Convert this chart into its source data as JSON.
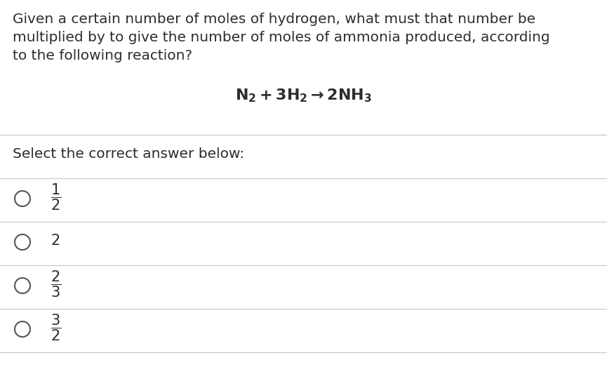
{
  "background_color": "#ffffff",
  "text_color": "#3a3a3a",
  "question_color": "#2d2d2d",
  "reaction_color": "#2d2d2d",
  "select_color": "#2d2d2d",
  "answer_color": "#2d2d2d",
  "question_lines": [
    "Given a certain number of moles of hydrogen, what must that number be",
    "multiplied by to give the number of moles of ammonia produced, according",
    "to the following reaction?"
  ],
  "reaction": "$\\mathbf{N_2 + 3H_2 \\rightarrow 2NH_3}$",
  "select_text": "Select the correct answer below:",
  "answers": [
    {
      "label": "$\\dfrac{1}{2}$"
    },
    {
      "label": "$2$"
    },
    {
      "label": "$\\dfrac{2}{3}$"
    },
    {
      "label": "$\\dfrac{3}{2}$"
    }
  ],
  "divider_color": "#c8c8c8",
  "circle_color": "#555555",
  "fig_width": 8.65,
  "fig_height": 5.5,
  "dpi": 100
}
